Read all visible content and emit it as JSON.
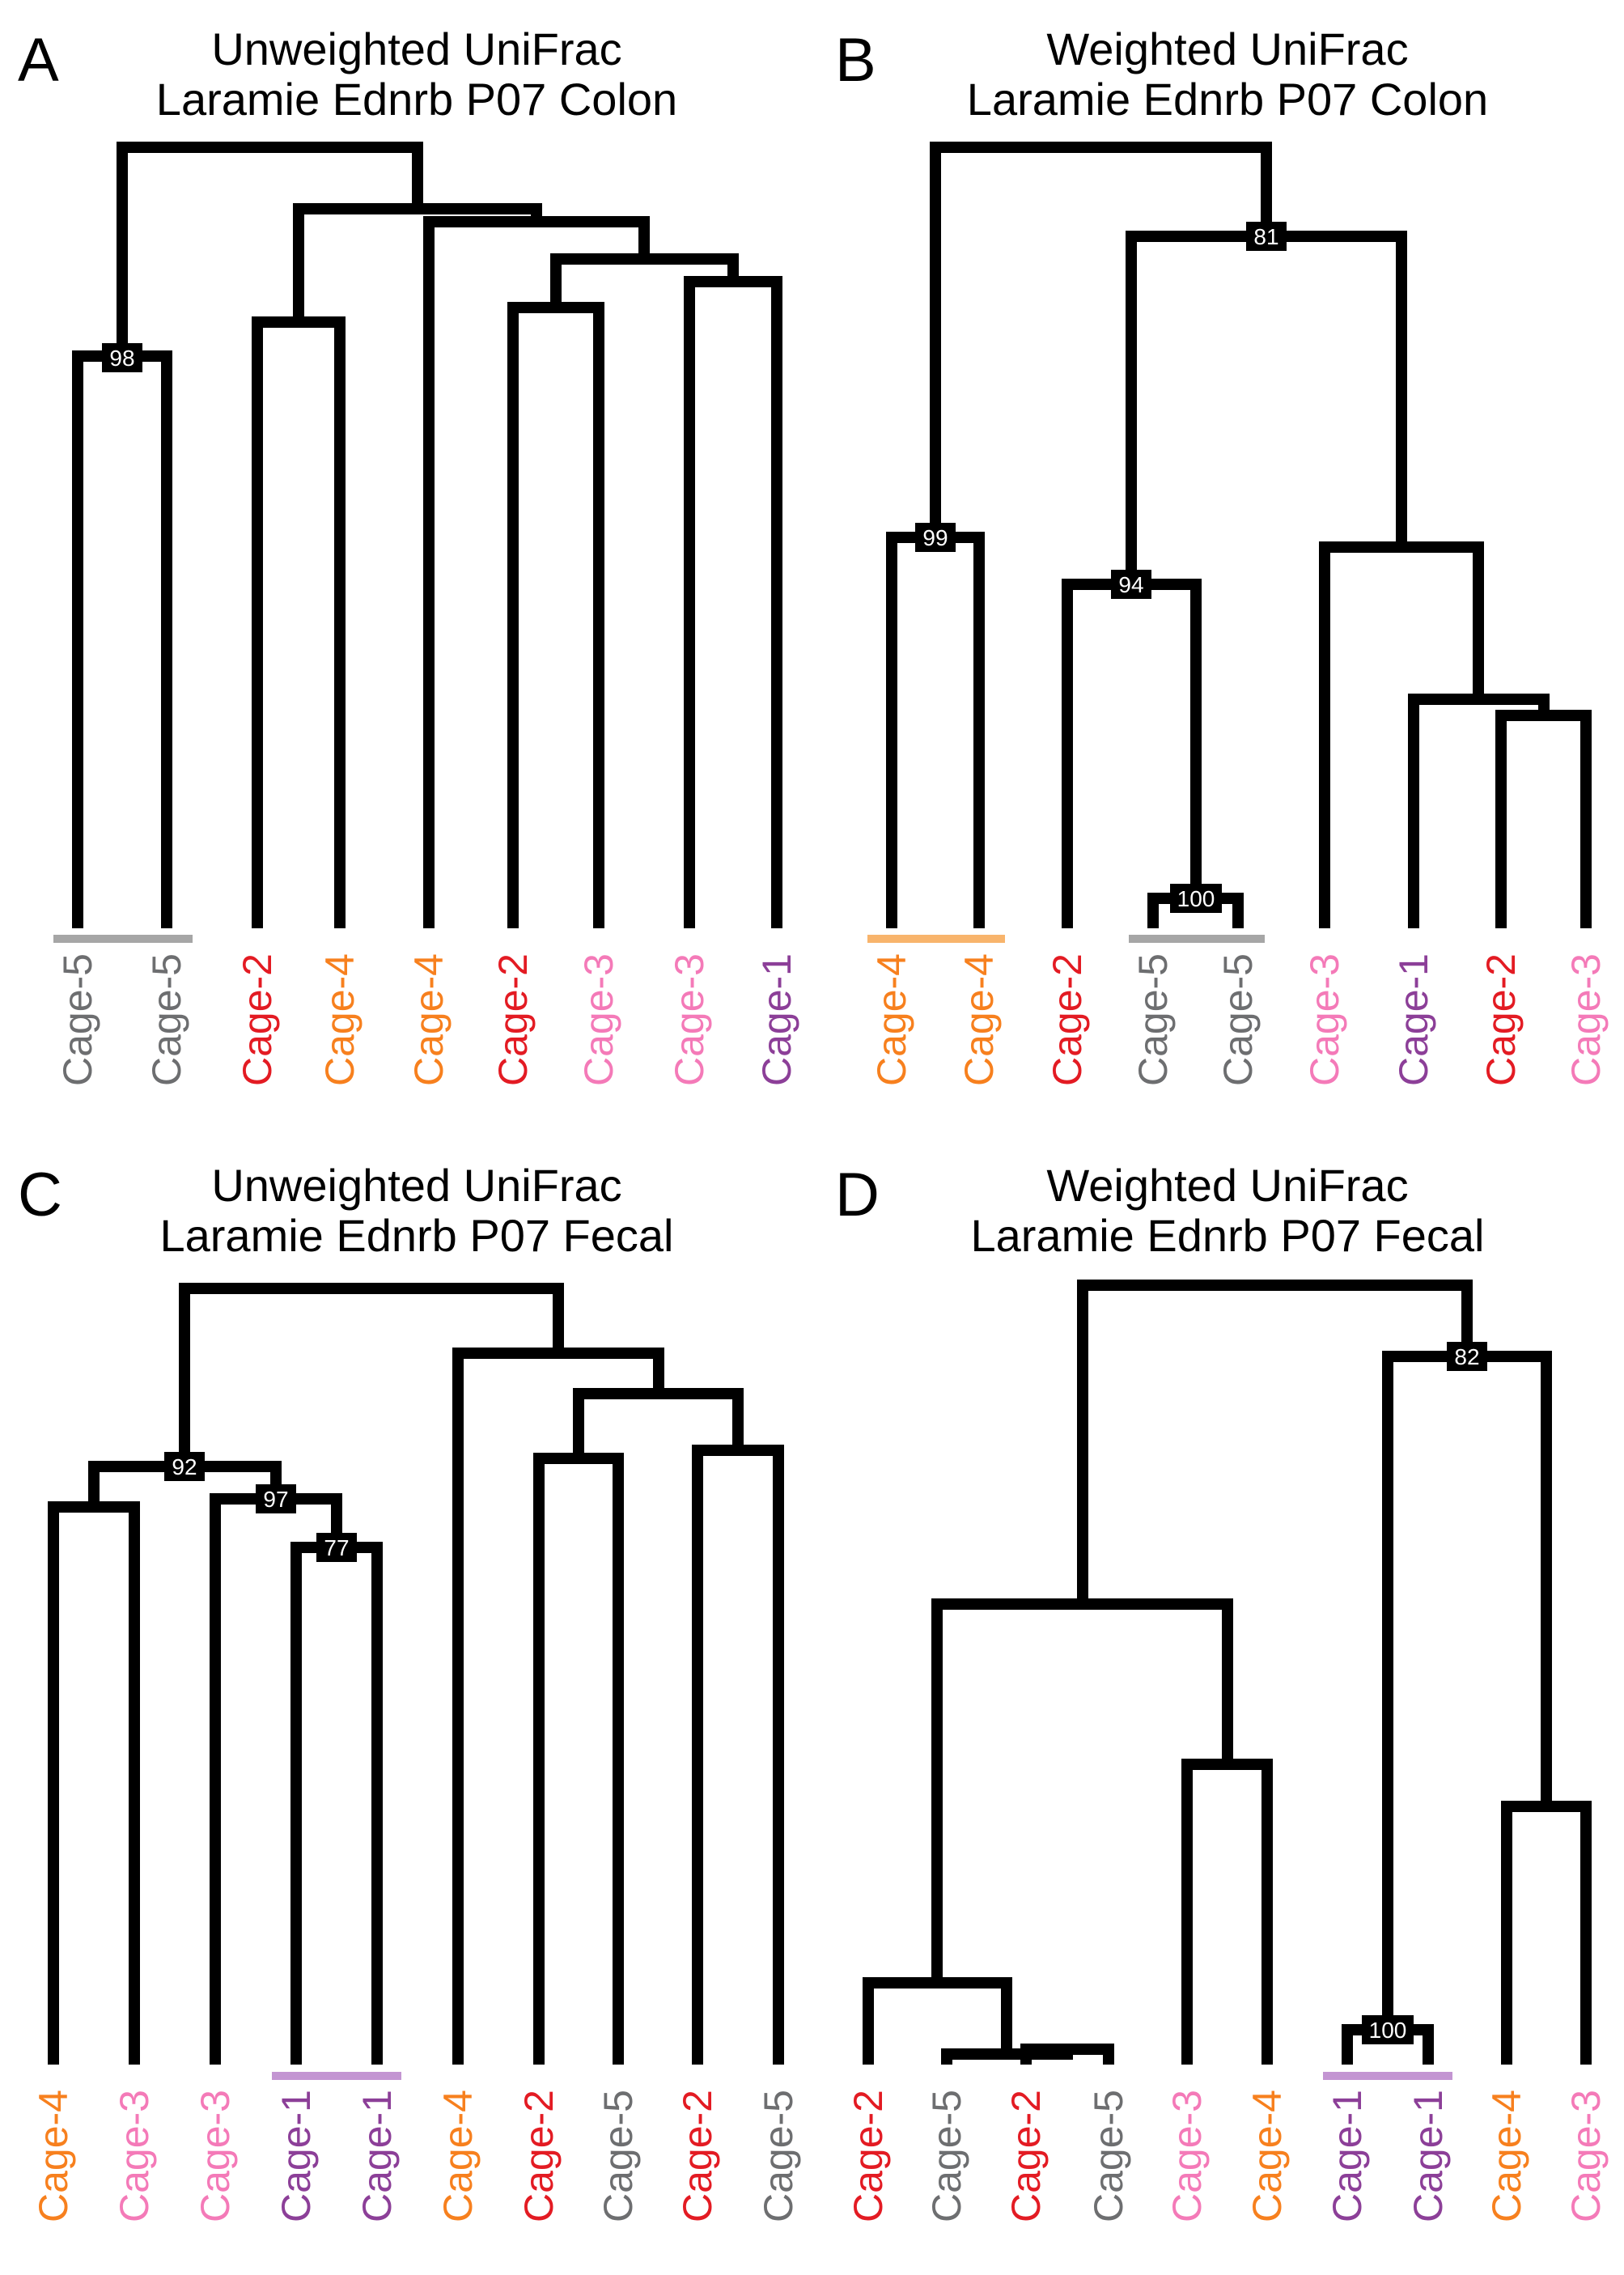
{
  "colors": {
    "Cage-1": "#8c3f98",
    "Cage-2": "#e31b23",
    "Cage-3": "#f47ab8",
    "Cage-4": "#f7801e",
    "Cage-5": "#6d6e70",
    "bar_Cage-1": "#c395d2",
    "bar_Cage-4": "#f8b46c",
    "bar_Cage-5": "#a6a6a6"
  },
  "panels": [
    {
      "letter": "A",
      "title_line1": "Unweighted UniFrac",
      "title_line2": "Laramie Ednrb P07 Colon",
      "tree": [
        [
          [
            "Cage-5",
            "Cage-5",
            "98"
          ],
          [
            [
              "Cage-2",
              "Cage-4"
            ],
            [
              "Cage-4",
              [
                [
                  "Cage-2",
                  "Cage-3"
                ],
                [
                  "Cage-3",
                  "Cage-1"
                ]
              ]
            ]
          ]
        ]
      ],
      "leaves": [
        "Cage-5",
        "Cage-5",
        "Cage-2",
        "Cage-4",
        "Cage-4",
        "Cage-2",
        "Cage-3",
        "Cage-3",
        "Cage-1"
      ],
      "bootstrap": [
        "98"
      ],
      "group_bars": [
        {
          "cage": "Cage-5"
        }
      ]
    },
    {
      "letter": "B",
      "title_line1": "Weighted UniFrac",
      "title_line2": "Laramie Ednrb P07 Colon",
      "leaves": [
        "Cage-4",
        "Cage-4",
        "Cage-2",
        "Cage-5",
        "Cage-5",
        "Cage-3",
        "Cage-1",
        "Cage-2",
        "Cage-3"
      ],
      "bootstrap": [
        "99",
        "94",
        "100",
        "81"
      ],
      "group_bars": [
        {
          "cage": "Cage-4"
        },
        {
          "cage": "Cage-5"
        }
      ]
    },
    {
      "letter": "C",
      "title_line1": "Unweighted UniFrac",
      "title_line2": "Laramie Ednrb P07 Fecal",
      "leaves": [
        "Cage-4",
        "Cage-3",
        "Cage-3",
        "Cage-1",
        "Cage-1",
        "Cage-4",
        "Cage-2",
        "Cage-5",
        "Cage-2",
        "Cage-5"
      ],
      "bootstrap": [
        "92",
        "97",
        "77"
      ],
      "group_bars": [
        {
          "cage": "Cage-1"
        }
      ]
    },
    {
      "letter": "D",
      "title_line1": "Weighted UniFrac",
      "title_line2": "Laramie Ednrb P07 Fecal",
      "leaves": [
        "Cage-2",
        "Cage-5",
        "Cage-2",
        "Cage-5",
        "Cage-3",
        "Cage-4",
        "Cage-1",
        "Cage-1",
        "Cage-4",
        "Cage-3"
      ],
      "bootstrap": [
        "82",
        "100"
      ],
      "group_bars": [
        {
          "cage": "Cage-1"
        }
      ]
    }
  ]
}
